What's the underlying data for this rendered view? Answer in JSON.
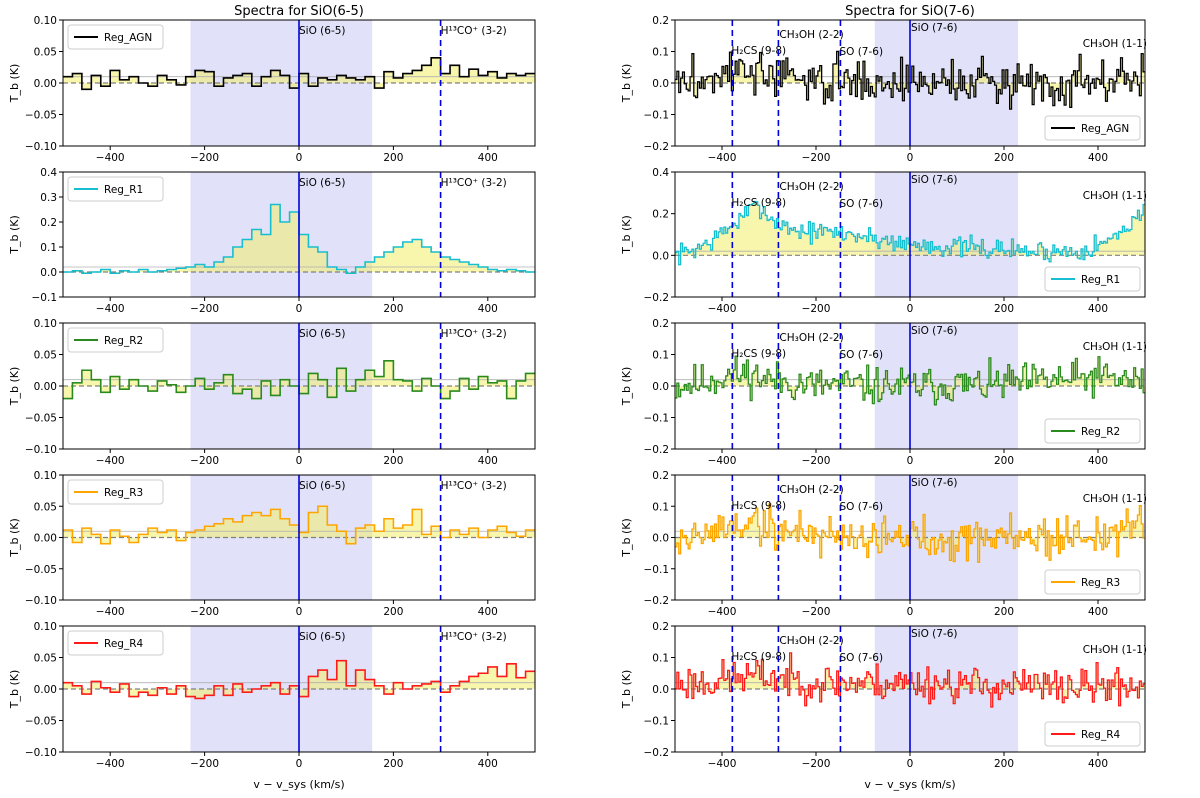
{
  "chart_data": [
    {
      "type": "line",
      "title": "Spectra for SiO(6-5)",
      "xlabel": "v − v_sys (km/s)",
      "ylabel": "T_b (K)",
      "xlim": [
        -500,
        500
      ],
      "xticks": [
        -400,
        -200,
        0,
        200,
        400
      ],
      "xtick_labels": [
        "−400",
        "−200",
        "0",
        "200",
        "400"
      ],
      "shaded_region": [
        -230,
        155
      ],
      "line_markers": [
        {
          "label": "SiO (6-5)",
          "x": 0,
          "style": "solid"
        },
        {
          "label": "H¹³CO⁺ (3-2)",
          "x": 300,
          "style": "dashed"
        }
      ],
      "panels": [
        {
          "series": "Reg_AGN",
          "color": "#000000",
          "legend": "upper left",
          "ylim": [
            -0.1,
            0.1
          ],
          "yticks": [
            -0.1,
            -0.05,
            0.0,
            0.05,
            0.1
          ],
          "ytick_labels": [
            "−0.10",
            "−0.05",
            "0.00",
            "0.05",
            "0.10"
          ],
          "x": [
            -500,
            -480,
            -460,
            -440,
            -420,
            -400,
            -380,
            -360,
            -340,
            -320,
            -300,
            -280,
            -260,
            -240,
            -220,
            -200,
            -180,
            -160,
            -140,
            -120,
            -100,
            -80,
            -60,
            -40,
            -20,
            0,
            20,
            40,
            60,
            80,
            100,
            120,
            140,
            160,
            180,
            200,
            220,
            240,
            260,
            280,
            300,
            320,
            340,
            360,
            380,
            400,
            420,
            440,
            460,
            480
          ],
          "y": [
            0.01,
            0.015,
            -0.01,
            0.012,
            -0.005,
            0.02,
            0.005,
            0.01,
            0.0,
            -0.005,
            0.012,
            0.005,
            -0.003,
            0.01,
            0.02,
            0.018,
            -0.005,
            0.008,
            0.012,
            0.015,
            -0.005,
            0.01,
            0.02,
            0.012,
            -0.008,
            0.015,
            -0.005,
            0.008,
            0.005,
            0.012,
            0.008,
            0.005,
            0.01,
            -0.008,
            0.018,
            0.008,
            0.015,
            0.02,
            0.028,
            0.04,
            0.015,
            0.028,
            0.01,
            0.022,
            0.012,
            0.018,
            0.008,
            0.015,
            0.012,
            0.015
          ]
        },
        {
          "series": "Reg_R1",
          "color": "#17becf",
          "legend": "upper left",
          "ylim": [
            -0.1,
            0.4
          ],
          "yticks": [
            -0.1,
            0.0,
            0.1,
            0.2,
            0.3,
            0.4
          ],
          "ytick_labels": [
            "−0.1",
            "0.0",
            "0.1",
            "0.2",
            "0.3",
            "0.4"
          ],
          "x": [
            -500,
            -480,
            -460,
            -440,
            -420,
            -400,
            -380,
            -360,
            -340,
            -320,
            -300,
            -280,
            -260,
            -240,
            -220,
            -200,
            -180,
            -160,
            -140,
            -120,
            -100,
            -80,
            -60,
            -40,
            -20,
            0,
            20,
            40,
            60,
            80,
            100,
            120,
            140,
            160,
            180,
            200,
            220,
            240,
            260,
            280,
            300,
            320,
            340,
            360,
            380,
            400,
            420,
            440,
            460,
            480
          ],
          "y": [
            0.0,
            0.005,
            -0.005,
            0.0,
            0.01,
            -0.005,
            0.005,
            0.0,
            0.01,
            0.0,
            0.005,
            0.01,
            0.015,
            0.02,
            0.03,
            0.02,
            0.04,
            0.06,
            0.1,
            0.13,
            0.17,
            0.15,
            0.27,
            0.2,
            0.24,
            0.15,
            0.1,
            0.08,
            0.02,
            0.01,
            -0.005,
            0.02,
            0.04,
            0.06,
            0.08,
            0.1,
            0.12,
            0.13,
            0.1,
            0.08,
            0.06,
            0.05,
            0.04,
            0.03,
            0.02,
            0.01,
            0.005,
            0.01,
            0.005,
            0.0
          ]
        },
        {
          "series": "Reg_R2",
          "color": "#2a8a1e",
          "legend": "upper left",
          "ylim": [
            -0.1,
            0.1
          ],
          "yticks": [
            -0.1,
            -0.05,
            0.0,
            0.05,
            0.1
          ],
          "ytick_labels": [
            "−0.10",
            "−0.05",
            "0.00",
            "0.05",
            "0.10"
          ],
          "x": [
            -500,
            -480,
            -460,
            -440,
            -420,
            -400,
            -380,
            -360,
            -340,
            -320,
            -300,
            -280,
            -260,
            -240,
            -220,
            -200,
            -180,
            -160,
            -140,
            -120,
            -100,
            -80,
            -60,
            -40,
            -20,
            0,
            20,
            40,
            60,
            80,
            100,
            120,
            140,
            160,
            180,
            200,
            220,
            240,
            260,
            280,
            300,
            320,
            340,
            360,
            380,
            400,
            420,
            440,
            460,
            480
          ],
          "y": [
            -0.02,
            0.005,
            0.025,
            0.01,
            -0.01,
            0.015,
            -0.005,
            0.01,
            0.0,
            -0.008,
            0.008,
            0.002,
            -0.01,
            0.0,
            0.012,
            -0.005,
            0.005,
            0.018,
            -0.012,
            -0.005,
            -0.02,
            0.008,
            -0.015,
            0.01,
            0.0,
            -0.012,
            0.02,
            0.01,
            -0.018,
            0.028,
            -0.008,
            0.01,
            0.025,
            0.015,
            0.04,
            0.01,
            0.008,
            -0.008,
            0.012,
            0.0,
            -0.02,
            -0.008,
            0.012,
            -0.005,
            0.015,
            0.005,
            0.008,
            -0.02,
            0.008,
            0.02
          ]
        },
        {
          "series": "Reg_R3",
          "color": "#ffa500",
          "legend": "upper left",
          "ylim": [
            -0.1,
            0.1
          ],
          "yticks": [
            -0.1,
            -0.05,
            0.0,
            0.05,
            0.1
          ],
          "ytick_labels": [
            "−0.10",
            "−0.05",
            "0.00",
            "0.05",
            "0.10"
          ],
          "x": [
            -500,
            -480,
            -460,
            -440,
            -420,
            -400,
            -380,
            -360,
            -340,
            -320,
            -300,
            -280,
            -260,
            -240,
            -220,
            -200,
            -180,
            -160,
            -140,
            -120,
            -100,
            -80,
            -60,
            -40,
            -20,
            0,
            20,
            40,
            60,
            80,
            100,
            120,
            140,
            160,
            180,
            200,
            220,
            240,
            260,
            280,
            300,
            320,
            340,
            360,
            380,
            400,
            420,
            440,
            460,
            480
          ],
          "y": [
            0.012,
            -0.008,
            0.015,
            0.005,
            -0.01,
            0.012,
            0.002,
            -0.008,
            0.005,
            0.015,
            0.008,
            0.012,
            -0.005,
            0.008,
            0.012,
            0.018,
            0.022,
            0.03,
            0.025,
            0.035,
            0.04,
            0.035,
            0.045,
            0.03,
            0.02,
            0.008,
            0.04,
            0.05,
            0.02,
            0.01,
            -0.01,
            0.015,
            0.02,
            0.01,
            0.03,
            0.015,
            0.02,
            0.045,
            0.005,
            0.018,
            0.0,
            0.012,
            0.005,
            0.015,
            0.0,
            0.012,
            0.018,
            0.008,
            0.002,
            0.012
          ]
        },
        {
          "series": "Reg_R4",
          "color": "#ff1a1a",
          "legend": "upper left",
          "ylim": [
            -0.1,
            0.1
          ],
          "yticks": [
            -0.1,
            -0.05,
            0.0,
            0.05,
            0.1
          ],
          "ytick_labels": [
            "−0.10",
            "−0.05",
            "0.00",
            "0.05",
            "0.10"
          ],
          "x": [
            -500,
            -480,
            -460,
            -440,
            -420,
            -400,
            -380,
            -360,
            -340,
            -320,
            -300,
            -280,
            -260,
            -240,
            -220,
            -200,
            -180,
            -160,
            -140,
            -120,
            -100,
            -80,
            -60,
            -40,
            -20,
            0,
            20,
            40,
            60,
            80,
            100,
            120,
            140,
            160,
            180,
            200,
            220,
            240,
            260,
            280,
            300,
            320,
            340,
            360,
            380,
            400,
            420,
            440,
            460,
            480
          ],
          "y": [
            0.01,
            0.005,
            -0.008,
            0.012,
            0.002,
            -0.005,
            0.008,
            -0.012,
            -0.005,
            -0.01,
            0.002,
            -0.008,
            0.005,
            -0.012,
            -0.015,
            -0.01,
            0.005,
            -0.01,
            0.008,
            -0.005,
            0.0,
            0.005,
            0.01,
            -0.008,
            0.005,
            -0.012,
            0.02,
            0.03,
            0.015,
            0.045,
            0.005,
            0.03,
            0.015,
            0.005,
            -0.008,
            0.01,
            0.0,
            0.005,
            0.008,
            0.012,
            -0.005,
            0.005,
            0.012,
            0.02,
            0.025,
            0.035,
            0.02,
            0.04,
            0.018,
            0.028
          ]
        }
      ]
    },
    {
      "type": "line",
      "title": "Spectra for SiO(7-6)",
      "xlabel": "v − v_sys (km/s)",
      "ylabel": "T_b (K)",
      "xlim": [
        -500,
        500
      ],
      "xticks": [
        -400,
        -200,
        0,
        200,
        400
      ],
      "xtick_labels": [
        "−400",
        "−200",
        "0",
        "200",
        "400"
      ],
      "shaded_region": [
        -75,
        230
      ],
      "line_markers": [
        {
          "label": "H₂CS (9-8)",
          "x": -378,
          "style": "dashed"
        },
        {
          "label": "CH₃OH (2-2)",
          "x": -280,
          "style": "dashed"
        },
        {
          "label": "SO (7-6)",
          "x": -148,
          "style": "dashed"
        },
        {
          "label": "SiO (7-6)",
          "x": 0,
          "style": "solid"
        },
        {
          "label": "CH₃OH (1-1)",
          "x": 500,
          "style": "none"
        }
      ],
      "panels": [
        {
          "series": "Reg_AGN",
          "color": "#000000",
          "legend": "lower right",
          "seed": 3,
          "noise": 0.035,
          "ylim": [
            -0.2,
            0.2
          ],
          "yticks": [
            -0.2,
            -0.1,
            0.0,
            0.1,
            0.2
          ],
          "ytick_labels": [
            "−0.2",
            "−0.1",
            "0.0",
            "0.1",
            "0.2"
          ],
          "x": [
            -500,
            -450,
            -400,
            -350,
            -300,
            -250,
            -200,
            -150,
            -100,
            -50,
            0,
            50,
            100,
            150,
            200,
            250,
            300,
            350,
            400,
            450,
            500
          ],
          "y": [
            0.0,
            0.005,
            0.03,
            0.04,
            0.025,
            0.01,
            0.005,
            0.01,
            0.005,
            0.0,
            0.005,
            0.0,
            0.005,
            0.0,
            0.005,
            0.0,
            0.005,
            0.005,
            0.01,
            0.01,
            0.01
          ]
        },
        {
          "series": "Reg_R1",
          "color": "#17becf",
          "legend": "lower right",
          "seed": 7,
          "noise": 0.025,
          "ylim": [
            -0.2,
            0.4
          ],
          "yticks": [
            -0.2,
            0.0,
            0.2,
            0.4
          ],
          "ytick_labels": [
            "−0.2",
            "0.0",
            "0.2",
            "0.4"
          ],
          "x": [
            -500,
            -460,
            -430,
            -400,
            -370,
            -340,
            -320,
            -300,
            -270,
            -240,
            -200,
            -160,
            -120,
            -80,
            -40,
            0,
            40,
            80,
            120,
            160,
            200,
            250,
            300,
            350,
            400,
            430,
            460,
            480,
            500
          ],
          "y": [
            0.0,
            0.03,
            0.06,
            0.11,
            0.16,
            0.22,
            0.24,
            0.18,
            0.14,
            0.12,
            0.11,
            0.11,
            0.1,
            0.08,
            0.07,
            0.05,
            0.05,
            0.04,
            0.04,
            0.03,
            0.03,
            0.02,
            0.02,
            0.02,
            0.05,
            0.08,
            0.14,
            0.19,
            0.2
          ]
        },
        {
          "series": "Reg_R2",
          "color": "#2a8a1e",
          "legend": "lower right",
          "seed": 11,
          "noise": 0.03,
          "ylim": [
            -0.2,
            0.2
          ],
          "yticks": [
            -0.2,
            -0.1,
            0.0,
            0.1,
            0.2
          ],
          "ytick_labels": [
            "−0.2",
            "−0.1",
            "0.0",
            "0.1",
            "0.2"
          ],
          "x": [
            -500,
            -450,
            -400,
            -350,
            -300,
            -250,
            -200,
            -150,
            -100,
            -50,
            0,
            50,
            100,
            150,
            200,
            250,
            300,
            350,
            400,
            450,
            500
          ],
          "y": [
            0.0,
            0.01,
            0.03,
            0.04,
            0.02,
            0.01,
            0.0,
            0.005,
            0.0,
            0.0,
            0.0,
            0.0,
            0.005,
            0.0,
            0.01,
            0.01,
            0.02,
            0.02,
            0.03,
            0.02,
            0.01
          ]
        },
        {
          "series": "Reg_R3",
          "color": "#ffa500",
          "legend": "lower right",
          "seed": 19,
          "noise": 0.035,
          "ylim": [
            -0.2,
            0.2
          ],
          "yticks": [
            -0.2,
            -0.1,
            0.0,
            0.1,
            0.2
          ],
          "ytick_labels": [
            "−0.2",
            "−0.1",
            "0.0",
            "0.1",
            "0.2"
          ],
          "x": [
            -500,
            -450,
            -400,
            -350,
            -300,
            -250,
            -200,
            -150,
            -100,
            -50,
            0,
            50,
            100,
            150,
            200,
            250,
            300,
            350,
            400,
            450,
            500
          ],
          "y": [
            0.0,
            0.0,
            0.03,
            0.05,
            0.03,
            0.02,
            0.01,
            0.01,
            0.0,
            0.0,
            0.0,
            0.0,
            0.0,
            0.0,
            0.005,
            0.0,
            0.0,
            0.005,
            0.01,
            0.02,
            0.03
          ]
        },
        {
          "series": "Reg_R4",
          "color": "#ff1a1a",
          "legend": "lower right",
          "seed": 23,
          "noise": 0.03,
          "ylim": [
            -0.2,
            0.2
          ],
          "yticks": [
            -0.2,
            -0.1,
            0.0,
            0.1,
            0.2
          ],
          "ytick_labels": [
            "−0.2",
            "−0.1",
            "0.0",
            "0.1",
            "0.2"
          ],
          "x": [
            -500,
            -450,
            -400,
            -350,
            -300,
            -250,
            -200,
            -150,
            -100,
            -50,
            0,
            50,
            100,
            150,
            200,
            250,
            300,
            350,
            400,
            450,
            500
          ],
          "y": [
            0.02,
            0.02,
            0.03,
            0.04,
            0.04,
            0.03,
            0.02,
            0.02,
            0.02,
            0.02,
            0.02,
            0.02,
            0.015,
            0.01,
            0.01,
            0.01,
            0.005,
            0.005,
            0.01,
            0.01,
            0.01
          ]
        }
      ]
    }
  ]
}
